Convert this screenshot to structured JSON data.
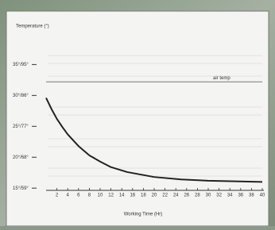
{
  "chart_data": {
    "type": "line",
    "title": "Temperature (°)",
    "x_label": "Working Time (Hr)",
    "xlim": [
      0,
      40
    ],
    "xticks": [
      2,
      4,
      6,
      8,
      10,
      12,
      14,
      16,
      18,
      20,
      22,
      24,
      26,
      28,
      30,
      32,
      34,
      36,
      38,
      40
    ],
    "ylim": [
      14,
      38
    ],
    "yticks": [
      {
        "value": 15,
        "label": "15°/59°"
      },
      {
        "value": 20,
        "label": "20°/68°"
      },
      {
        "value": 25,
        "label": "25°/77°"
      },
      {
        "value": 30,
        "label": "30°/86°"
      },
      {
        "value": 35,
        "label": "35°/95°"
      }
    ],
    "reference_line": {
      "label": "air temp",
      "value": 32.2
    },
    "series": [
      {
        "color": "#222222",
        "x": [
          0,
          1,
          2,
          3,
          4,
          6,
          8,
          10,
          12,
          15,
          20,
          25,
          30,
          35,
          40
        ],
        "values": [
          29.6,
          27.8,
          26.2,
          24.9,
          23.7,
          21.8,
          20.3,
          19.3,
          18.4,
          17.6,
          16.8,
          16.4,
          16.2,
          16.1,
          16.0
        ]
      }
    ]
  }
}
